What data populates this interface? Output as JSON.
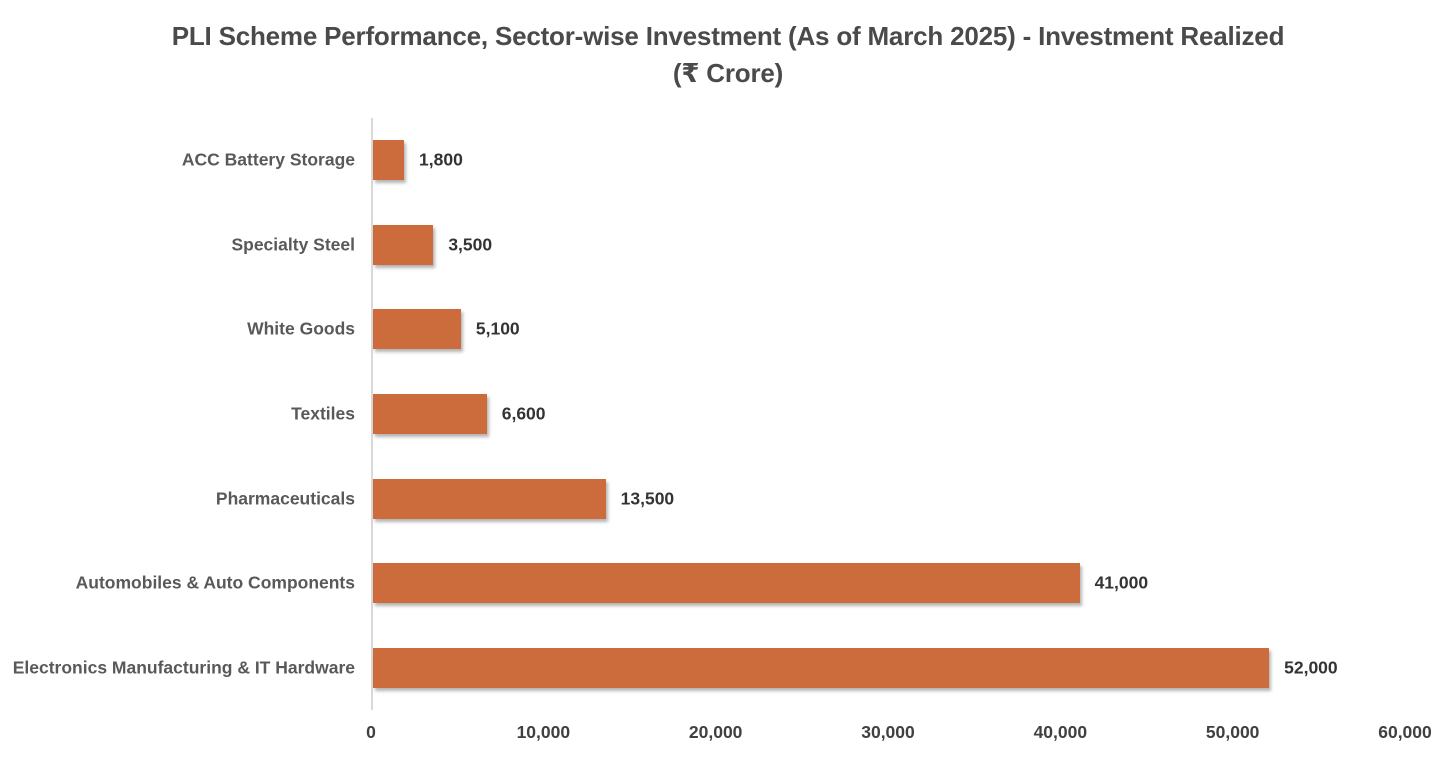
{
  "title": "PLI Scheme Performance, Sector-wise Investment (As of March 2025) - Investment Realized (₹ Crore)",
  "colors": {
    "bar_fill": "#cc6c3d",
    "axis_line": "#d9d9d9",
    "title_text": "#4a4a4a",
    "category_text": "#595959",
    "value_text": "#333333",
    "tick_text": "#404040",
    "background": "#ffffff"
  },
  "chart_data": {
    "type": "bar",
    "orientation": "horizontal",
    "title": "PLI Scheme Performance, Sector-wise Investment (As of March 2025) - Investment Realized (₹ Crore)",
    "categories": [
      "ACC Battery Storage",
      "Specialty Steel",
      "White Goods",
      "Textiles",
      "Pharmaceuticals",
      "Automobiles & Auto Components",
      "Electronics Manufacturing & IT Hardware"
    ],
    "values": [
      1800,
      3500,
      5100,
      6600,
      13500,
      41000,
      52000
    ],
    "value_labels": [
      "1,800",
      "3,500",
      "5,100",
      "6,600",
      "13,500",
      "41,000",
      "52,000"
    ],
    "xlabel": "",
    "ylabel": "",
    "xlim": [
      0,
      60000
    ],
    "x_ticks": [
      0,
      10000,
      20000,
      30000,
      40000,
      50000,
      60000
    ],
    "x_tick_labels": [
      "0",
      "10,000",
      "20,000",
      "30,000",
      "40,000",
      "50,000",
      "60,000"
    ],
    "grid": false,
    "legend": false,
    "bar_color": "#cc6c3d"
  }
}
